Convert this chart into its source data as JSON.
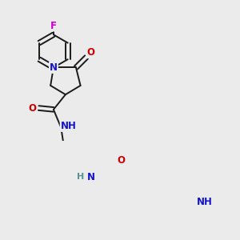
{
  "background_color": "#ebebeb",
  "bond_color": "#1a1a1a",
  "atom_colors": {
    "F": "#cc00cc",
    "N": "#1414cc",
    "O": "#cc0000",
    "H": "#5a9090",
    "C": "#1a1a1a"
  },
  "figsize": [
    3.0,
    3.0
  ],
  "dpi": 100,
  "bond_lw": 1.4,
  "font_size": 8.5
}
